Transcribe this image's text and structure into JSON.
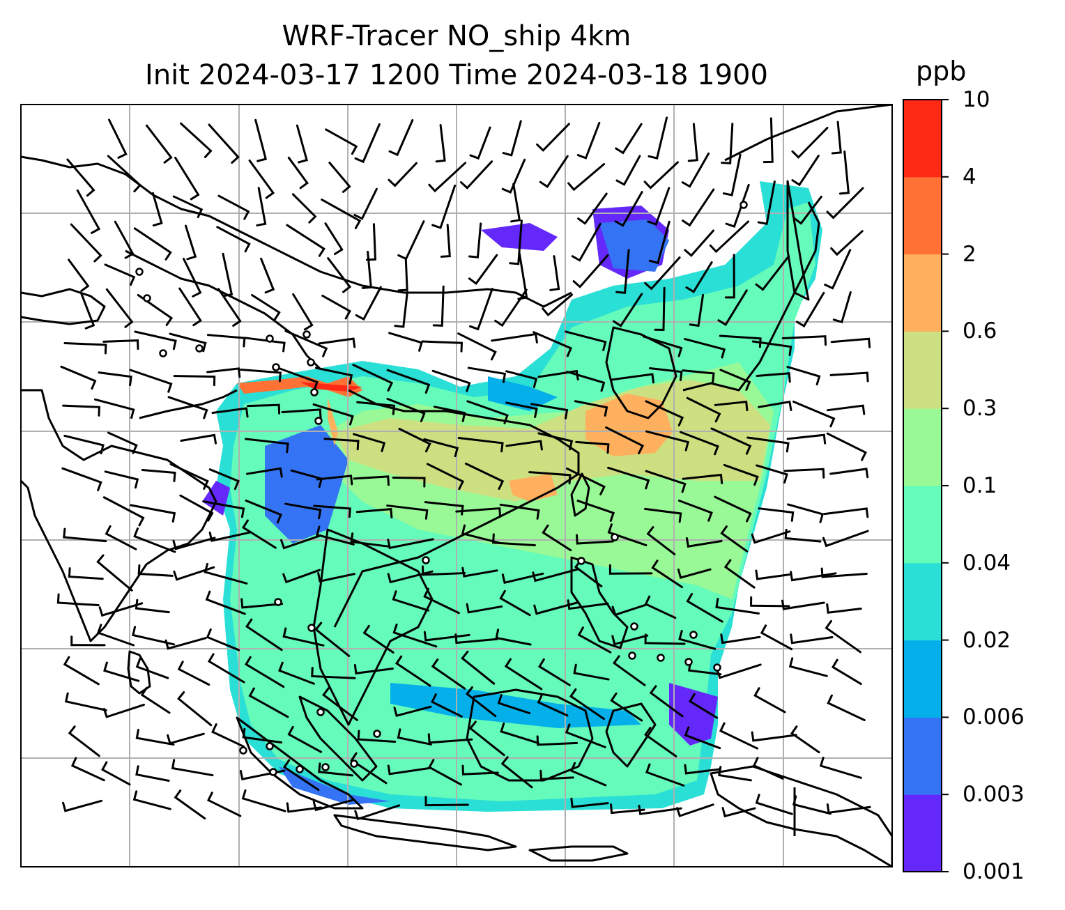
{
  "title": {
    "line1": "WRF-Tracer NO_ship 4km",
    "line2": "Init 2024-03-17 1200 Time 2024-03-18 1900"
  },
  "colorbar": {
    "unit": "ppb",
    "ticks": [
      "0.001",
      "0.003",
      "0.006",
      "0.02",
      "0.04",
      "0.1",
      "0.3",
      "0.6",
      "2",
      "4",
      "10"
    ],
    "colors": [
      "#6429fa",
      "#3474f4",
      "#05b0ea",
      "#2adfd5",
      "#65fbba",
      "#99f997",
      "#cde081",
      "#feb05f",
      "#ff7135",
      "#ff2a16"
    ]
  },
  "map": {
    "gridlines": true,
    "coastline_color": "#000000",
    "wind_barb_color": "#000000",
    "grid_color": "#b0b0b0"
  }
}
